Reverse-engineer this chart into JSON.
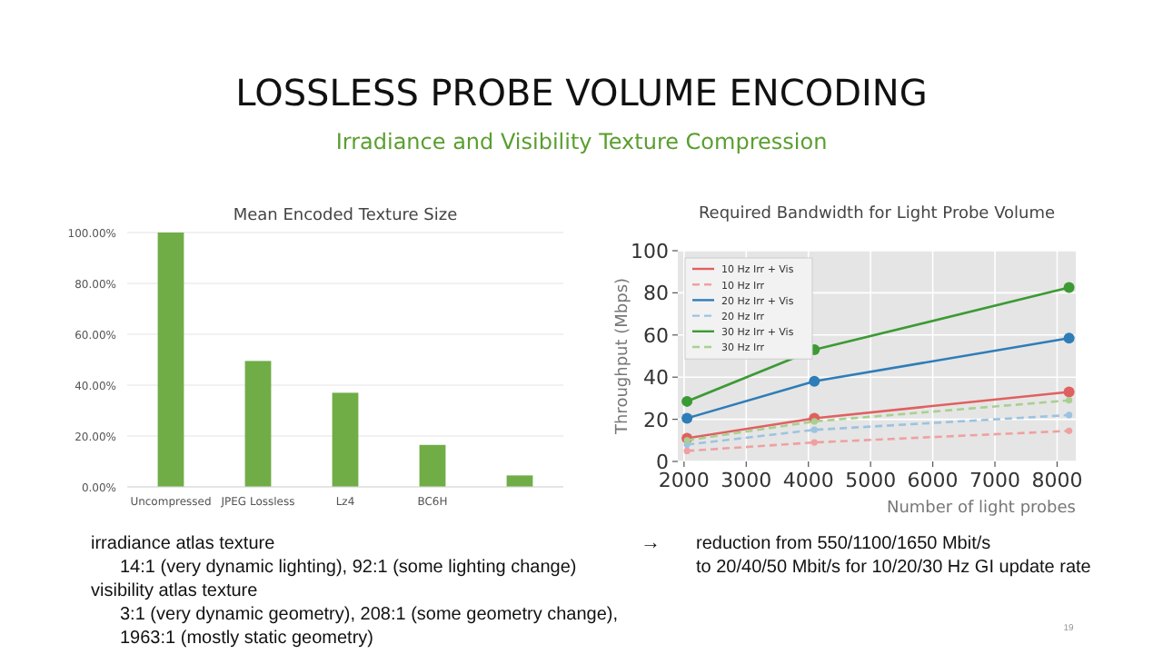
{
  "chart_data": [
    {
      "type": "other",
      "title": "LOSSLESS PROBE VOLUME ENCODING",
      "subtitle": "Irradiance and Visibility Texture Compression",
      "annotations": [
        "irradiance atlas texture",
        "14:1 (very dynamic lighting), 92:1 (some lighting change)",
        "visibility atlas texture",
        "3:1 (very dynamic geometry), 208:1 (some geometry change),",
        "1963:1 (mostly static geometry)",
        "→",
        "reduction from 550/1100/1650 Mbit/s",
        "to 20/40/50 Mbit/s for 10/20/30 Hz GI update rate",
        "19"
      ]
    },
    {
      "type": "bar",
      "title": "Mean Encoded Texture Size",
      "categories": [
        "Uncompressed",
        "JPEG Lossless",
        "Lz4",
        "BC6H",
        null
      ],
      "values": [
        100,
        49.5,
        37,
        16.5,
        4.5
      ],
      "color": "#70ad47",
      "ylim": [
        0,
        100
      ],
      "yticks": [
        {
          "value": 0,
          "label": "0.00%"
        },
        {
          "value": 20,
          "label": "20.00%"
        },
        {
          "value": 40,
          "label": "40.00%"
        },
        {
          "value": 60,
          "label": "60.00%"
        },
        {
          "value": 80,
          "label": "80.00%"
        },
        {
          "value": 100,
          "label": "100.00%"
        }
      ],
      "grid": "y"
    },
    {
      "type": "line",
      "title": "Required Bandwidth for Light Probe Volume",
      "xlabel": "Number of light probes",
      "ylabel": "Throughput (Mbps)",
      "x": [
        2048,
        4096,
        8192
      ],
      "xlim": [
        1900,
        8300
      ],
      "xticks": [
        2000,
        3000,
        4000,
        5000,
        6000,
        7000,
        8000
      ],
      "ylim": [
        0,
        100
      ],
      "yticks": [
        0,
        20,
        40,
        60,
        80,
        100
      ],
      "grid": true,
      "legend": "top left",
      "marker": "circle",
      "series": [
        {
          "name": "10 Hz Irr + Vis",
          "color": "#e06060",
          "values": [
            11,
            20.5,
            33
          ]
        },
        {
          "name": "10 Hz Irr",
          "color": "#f0a0a0",
          "line_style": "dashed",
          "values": [
            5,
            9,
            14.5
          ]
        },
        {
          "name": "20 Hz Irr + Vis",
          "color": "#2e7db8",
          "values": [
            20.5,
            38,
            58.5
          ]
        },
        {
          "name": "20 Hz Irr",
          "color": "#9cc3e0",
          "line_style": "dashed",
          "values": [
            8,
            15,
            22
          ]
        },
        {
          "name": "30 Hz Irr + Vis",
          "color": "#3c9a34",
          "values": [
            28.5,
            53,
            82.5
          ]
        },
        {
          "name": "30 Hz Irr",
          "color": "#a8d090",
          "line_style": "dashed",
          "values": [
            10,
            19,
            29
          ]
        }
      ]
    }
  ]
}
